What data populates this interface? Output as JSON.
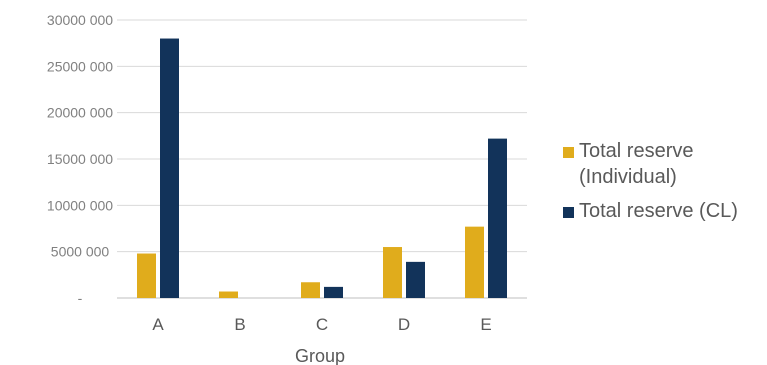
{
  "chart_data": {
    "type": "bar",
    "categories": [
      "A",
      "B",
      "C",
      "D",
      "E"
    ],
    "series": [
      {
        "name": "Total reserve (Individual)",
        "color": "#E0AC1C",
        "values": [
          4800000,
          700000,
          1700000,
          5500000,
          7700000
        ]
      },
      {
        "name": "Total reserve (CL)",
        "color": "#12335A",
        "values": [
          28000000,
          0,
          1200000,
          3900000,
          17200000
        ]
      }
    ],
    "xlabel": "Group",
    "ylabel": "",
    "ylim": [
      0,
      30000000
    ],
    "yticks": [
      {
        "value": 0,
        "label": "-"
      },
      {
        "value": 5000000,
        "label": "5000 000"
      },
      {
        "value": 10000000,
        "label": "10000 000"
      },
      {
        "value": 15000000,
        "label": "15000 000"
      },
      {
        "value": 20000000,
        "label": "20000 000"
      },
      {
        "value": 25000000,
        "label": "25000 000"
      },
      {
        "value": 30000000,
        "label": "30000 000"
      }
    ],
    "grid": true,
    "legend_position": "right"
  },
  "legend": {
    "items": [
      {
        "label": "Total reserve\n(Individual)",
        "color": "#E0AC1C"
      },
      {
        "label": "Total reserve (CL)",
        "color": "#12335A"
      }
    ]
  }
}
